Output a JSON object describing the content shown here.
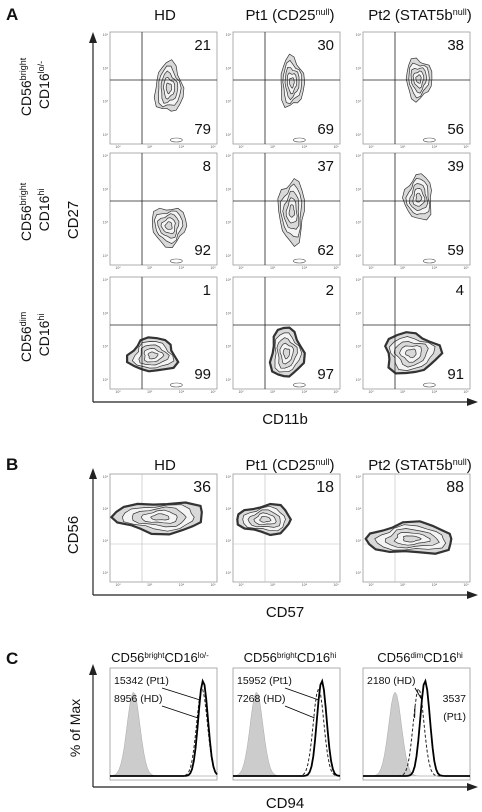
{
  "panelA": {
    "letter": "A",
    "columns": [
      {
        "base": "HD",
        "sup": ""
      },
      {
        "base": "Pt1 (CD25",
        "sup": "null",
        "close": ")"
      },
      {
        "base": "Pt2 (STAT5b",
        "sup": "null",
        "close": ")"
      }
    ],
    "rows": [
      {
        "line1": {
          "base": "CD56",
          "sup": "bright"
        },
        "line2": {
          "base": "CD16",
          "sup": "lo/-"
        }
      },
      {
        "line1": {
          "base": "CD56",
          "sup": "bright"
        },
        "line2": {
          "base": "CD16",
          "sup": "hi"
        }
      },
      {
        "line1": {
          "base": "CD56",
          "sup": "dim"
        },
        "line2": {
          "base": "CD16",
          "sup": "hi"
        }
      }
    ],
    "ylabel": "CD27",
    "xlabel": "CD11b",
    "quadrant_values": [
      [
        [
          21,
          79
        ],
        [
          30,
          69
        ],
        [
          38,
          56
        ]
      ],
      [
        [
          8,
          92
        ],
        [
          37,
          62
        ],
        [
          39,
          59
        ]
      ],
      [
        [
          1,
          99
        ],
        [
          2,
          97
        ],
        [
          4,
          91
        ]
      ]
    ]
  },
  "panelB": {
    "letter": "B",
    "columns": [
      {
        "base": "HD",
        "sup": ""
      },
      {
        "base": "Pt1 (CD25",
        "sup": "null",
        "close": ")"
      },
      {
        "base": "Pt2 (STAT5b",
        "sup": "null",
        "close": ")"
      }
    ],
    "ylabel": "CD56",
    "xlabel": "CD57",
    "values": [
      36,
      18,
      88
    ]
  },
  "panelC": {
    "letter": "C",
    "titles": [
      {
        "a": "CD56",
        "asup": "bright",
        "b": "CD16",
        "bsup": "lo/-"
      },
      {
        "a": "CD56",
        "asup": "bright",
        "b": "CD16",
        "bsup": "hi"
      },
      {
        "a": "CD56",
        "asup": "dim",
        "b": "CD16",
        "bsup": "hi"
      }
    ],
    "ylabel": "% of Max",
    "xlabel": "CD94",
    "annotations": [
      [
        "15342 (Pt1)",
        "8956 (HD)"
      ],
      [
        "15952 (Pt1)",
        "7268 (HD)"
      ],
      [
        "2180 (HD)",
        "3537",
        "(Pt1)"
      ]
    ]
  },
  "colors": {
    "contour": "#444444",
    "isotype": "#cccccc",
    "frame": "#999999"
  }
}
